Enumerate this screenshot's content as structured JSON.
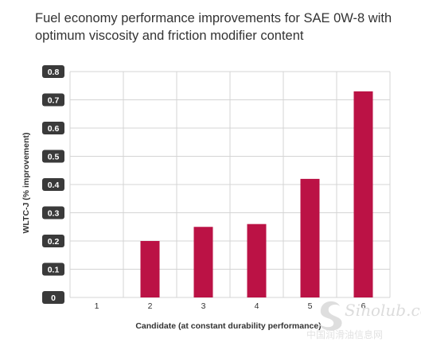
{
  "chart_data": {
    "type": "bar",
    "title": "Fuel economy performance improvements for SAE 0W-8 with optimum viscosity and friction modifier content",
    "xlabel": "Candidate (at constant durability performance)",
    "ylabel": "WLTC-J (% improvement)",
    "categories": [
      "1",
      "2",
      "3",
      "4",
      "5",
      "6"
    ],
    "values": [
      0,
      0.2,
      0.25,
      0.26,
      0.42,
      0.73
    ],
    "ylim": [
      0,
      0.8
    ],
    "yticks": [
      "0",
      "0.1",
      "0.2",
      "0.3",
      "0.4",
      "0.5",
      "0.6",
      "0.7",
      "0.8"
    ],
    "grid": true,
    "legend": "none",
    "colors": {
      "bar": "#bb1245",
      "tick_box": "#3a3a3a",
      "grid": "#d4d4d4"
    }
  },
  "watermark": {
    "text": "中国润滑油信息网",
    "logo": "Sinolub.com"
  }
}
